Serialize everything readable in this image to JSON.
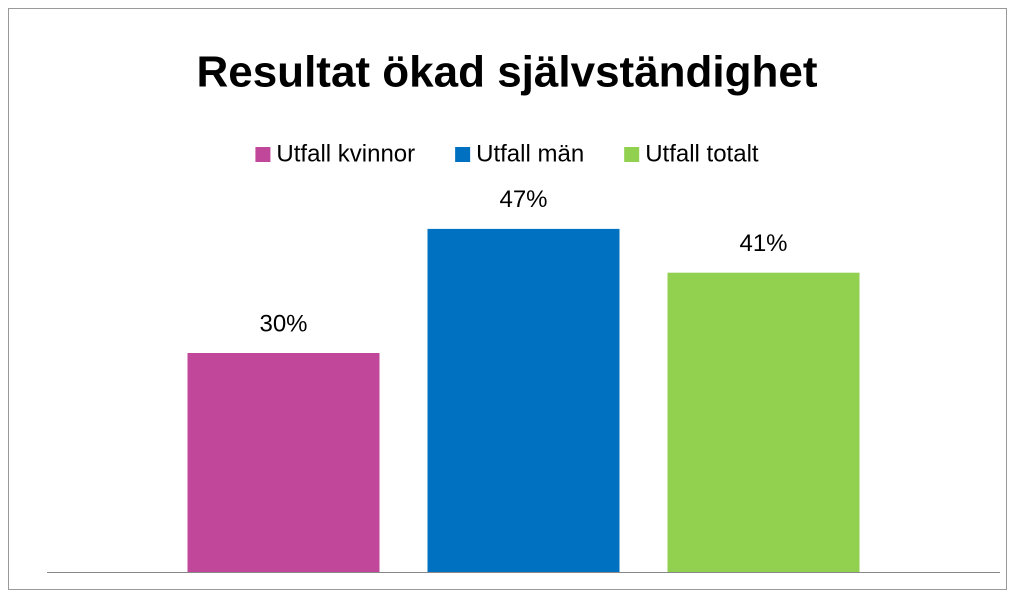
{
  "chart_data": {
    "type": "bar",
    "title": "Resultat ökad självständighet",
    "categories": [
      null
    ],
    "series": [
      {
        "name": "Utfall kvinnor",
        "color": "#c0479a",
        "values": [
          30
        ],
        "value_labels": [
          "30%"
        ]
      },
      {
        "name": "Utfall män",
        "color": "#0070c0",
        "values": [
          47
        ],
        "value_labels": [
          "47%"
        ]
      },
      {
        "name": "Utfall totalt",
        "color": "#92d050",
        "values": [
          41
        ],
        "value_labels": [
          "41%"
        ]
      }
    ],
    "ylim": [
      0,
      50
    ],
    "legend": "top"
  }
}
